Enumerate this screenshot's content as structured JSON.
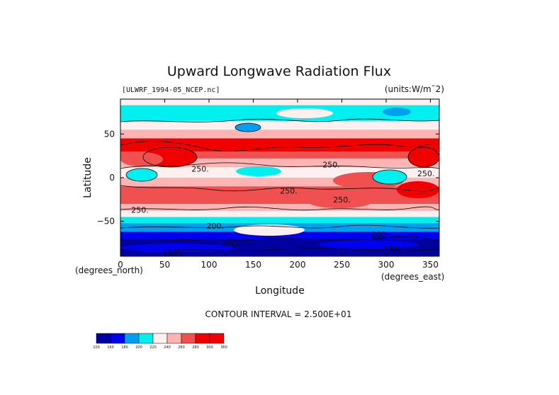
{
  "chart_data": {
    "type": "heatmap",
    "title": "Upward Longwave Radiation Flux",
    "subtitle": "[ULWRF_1994-05_NCEP.nc]",
    "units_label": "(units:W/m^-2)",
    "units_display": "(units:W/m¯2)",
    "xlabel": "Longitude",
    "ylabel": "Latitude",
    "x_unit_label": "(degrees_east)",
    "y_unit_label": "(degrees_north)",
    "xlim": [
      0,
      360
    ],
    "ylim": [
      -90,
      90
    ],
    "x_ticks": [
      0,
      50,
      100,
      150,
      200,
      250,
      300,
      350
    ],
    "y_ticks": [
      50,
      0,
      -50
    ],
    "y_tick_labels": [
      "50",
      "0",
      "−50"
    ],
    "contour_interval_text": "CONTOUR INTERVAL = 2.500E+01",
    "contour_labels": [
      {
        "text": "250.",
        "lon": 238,
        "lat": 15
      },
      {
        "text": "250.",
        "lon": 90,
        "lat": 10
      },
      {
        "text": "250.",
        "lon": 190,
        "lat": -15
      },
      {
        "text": "250.",
        "lon": 250,
        "lat": -25
      },
      {
        "text": "250.",
        "lon": 345,
        "lat": 5
      },
      {
        "text": "250.",
        "lon": 22,
        "lat": -37
      },
      {
        "text": "200.",
        "lon": 107,
        "lat": -55
      },
      {
        "text": "200.",
        "lon": 293,
        "lat": -65
      },
      {
        "text": "150.",
        "lon": 307,
        "lat": -82
      },
      {
        "text": "150.",
        "lon": 125,
        "lat": -75
      },
      {
        "text": "100.",
        "lon": 63,
        "lat": -86
      }
    ],
    "colorbar": {
      "levels": [
        "100",
        "160",
        "180",
        "200",
        "220",
        "240",
        "260",
        "280",
        "300",
        "360"
      ],
      "colors": [
        "#0000a0",
        "#0000f0",
        "#00a0f0",
        "#00f0f0",
        "#fff0f0",
        "#ffb4b4",
        "#f05050",
        "#f00000",
        "#f00000"
      ]
    },
    "zonal_bands": [
      {
        "lat_from": 90,
        "lat_to": 83,
        "value": 230
      },
      {
        "lat_from": 83,
        "lat_to": 65,
        "value": 215
      },
      {
        "lat_from": 65,
        "lat_to": 55,
        "value": 235
      },
      {
        "lat_from": 55,
        "lat_to": 45,
        "value": 255
      },
      {
        "lat_from": 45,
        "lat_to": 30,
        "value": 285
      },
      {
        "lat_from": 30,
        "lat_to": 22,
        "value": 270
      },
      {
        "lat_from": 22,
        "lat_to": 12,
        "value": 250
      },
      {
        "lat_from": 12,
        "lat_to": 0,
        "value": 230
      },
      {
        "lat_from": 0,
        "lat_to": -10,
        "value": 255
      },
      {
        "lat_from": -10,
        "lat_to": -30,
        "value": 275
      },
      {
        "lat_from": -30,
        "lat_to": -38,
        "value": 258
      },
      {
        "lat_from": -38,
        "lat_to": -45,
        "value": 235
      },
      {
        "lat_from": -45,
        "lat_to": -52,
        "value": 215
      },
      {
        "lat_from": -52,
        "lat_to": -62,
        "value": 195
      },
      {
        "lat_from": -62,
        "lat_to": -70,
        "value": 175
      },
      {
        "lat_from": -70,
        "lat_to": -90,
        "value": 140
      }
    ]
  }
}
